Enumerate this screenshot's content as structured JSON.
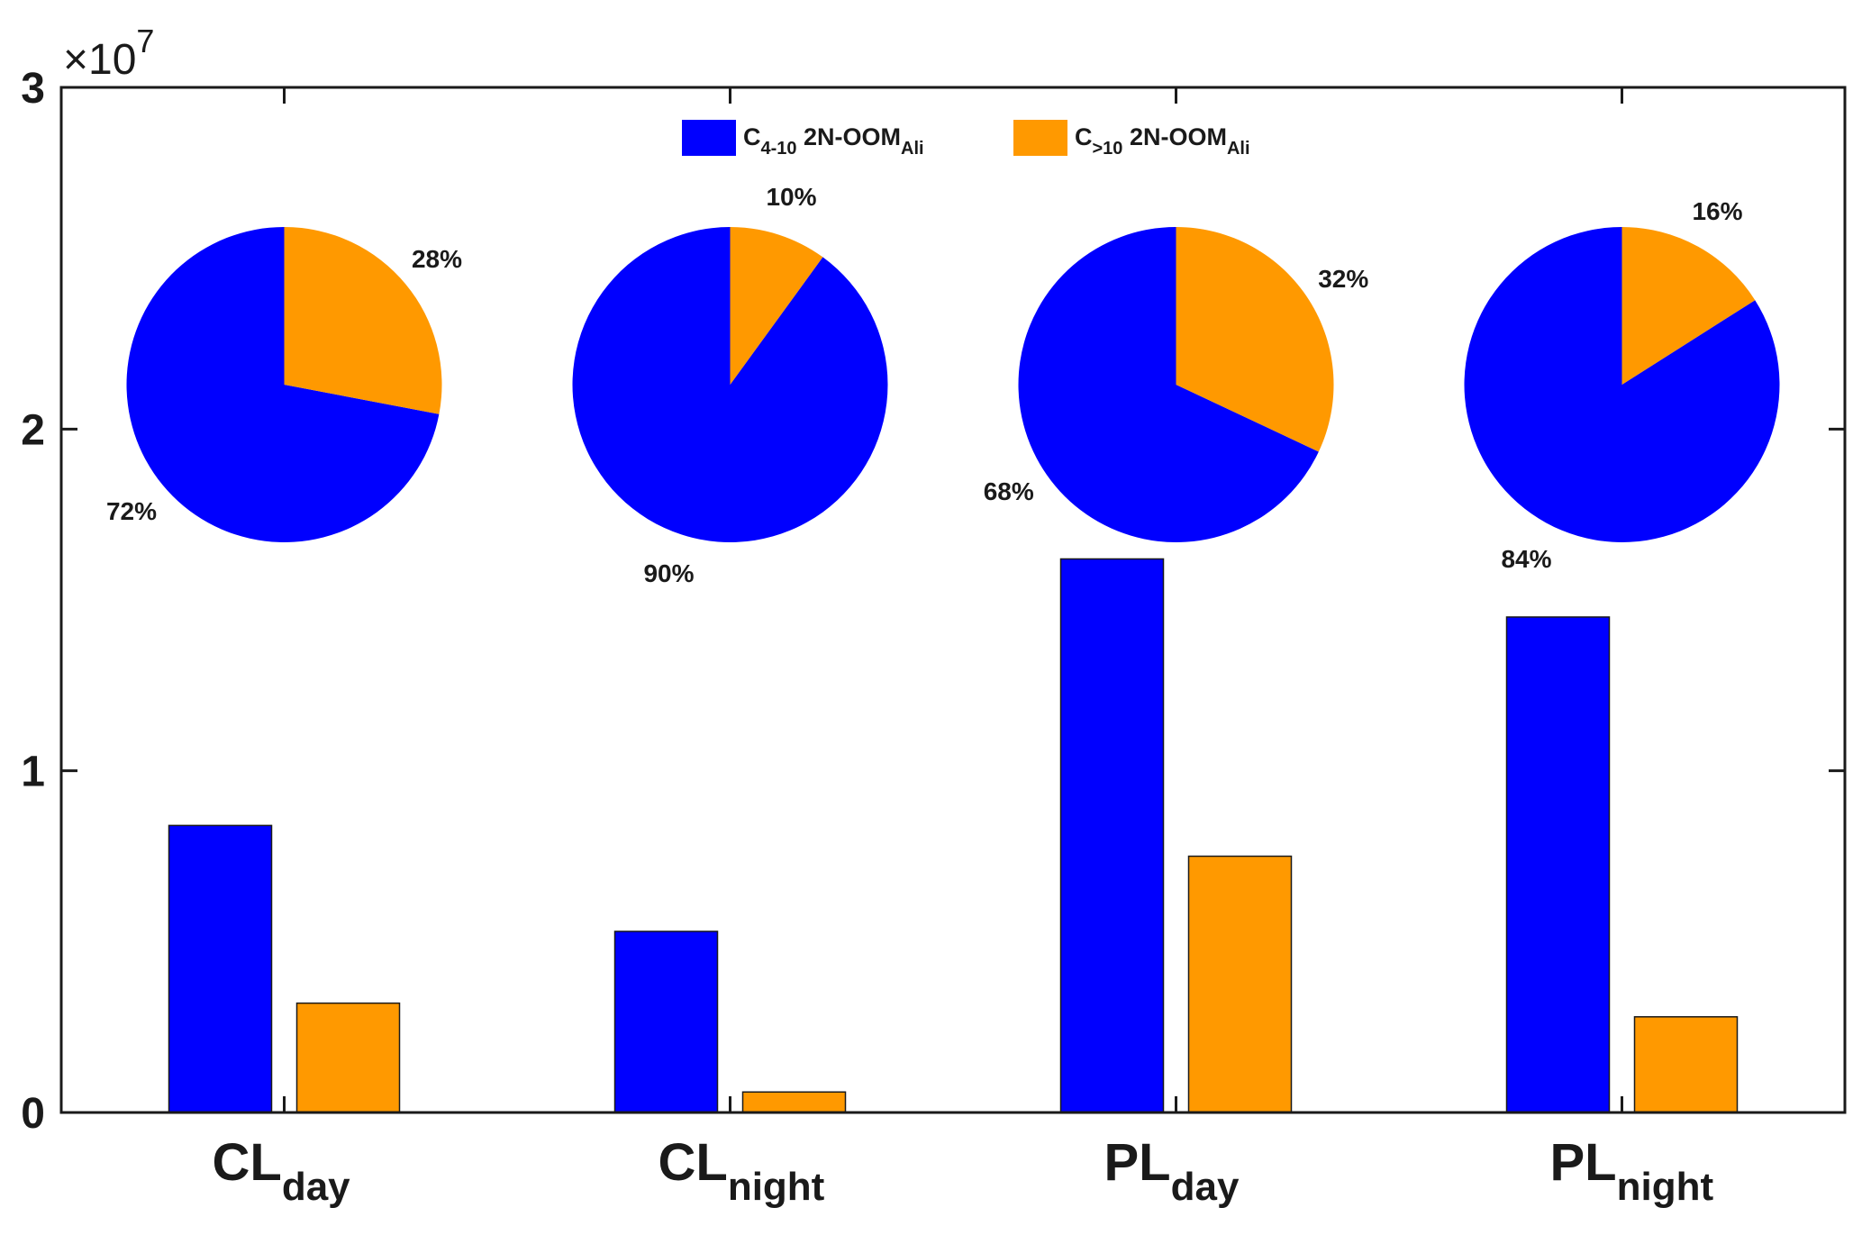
{
  "chart_data": {
    "type": "bar",
    "categories": [
      {
        "main": "CL",
        "sub": "day"
      },
      {
        "main": "CL",
        "sub": "night"
      },
      {
        "main": "PL",
        "sub": "day"
      },
      {
        "main": "PL",
        "sub": "night"
      }
    ],
    "series": [
      {
        "name": {
          "main": "C",
          "sub": "4-10",
          "rest": " 2N-OOM",
          "rest_sub": "Ali"
        },
        "color": "#0000ff",
        "values": [
          8400000,
          5300000,
          16200000,
          14500000
        ]
      },
      {
        "name": {
          "main": "C",
          "sub": ">10",
          "rest": " 2N-OOM",
          "rest_sub": "Ali"
        },
        "color": "#ff9900",
        "values": [
          3200000,
          600000,
          7500000,
          2800000
        ]
      }
    ],
    "ylim": [
      0,
      30000000
    ],
    "yticks": [
      0,
      10000000,
      20000000,
      30000000
    ],
    "ytick_labels": [
      "0",
      "1",
      "2",
      "3"
    ],
    "y_exponent": {
      "base": "×10",
      "power": "7"
    },
    "legend_position": "top-center",
    "pies": [
      {
        "labels": [
          "72%",
          "28%"
        ],
        "values": [
          72,
          28
        ]
      },
      {
        "labels": [
          "90%",
          "10%"
        ],
        "values": [
          90,
          10
        ]
      },
      {
        "labels": [
          "68%",
          "32%"
        ],
        "values": [
          68,
          32
        ]
      },
      {
        "labels": [
          "84%",
          "16%"
        ],
        "values": [
          84,
          16
        ]
      }
    ]
  }
}
